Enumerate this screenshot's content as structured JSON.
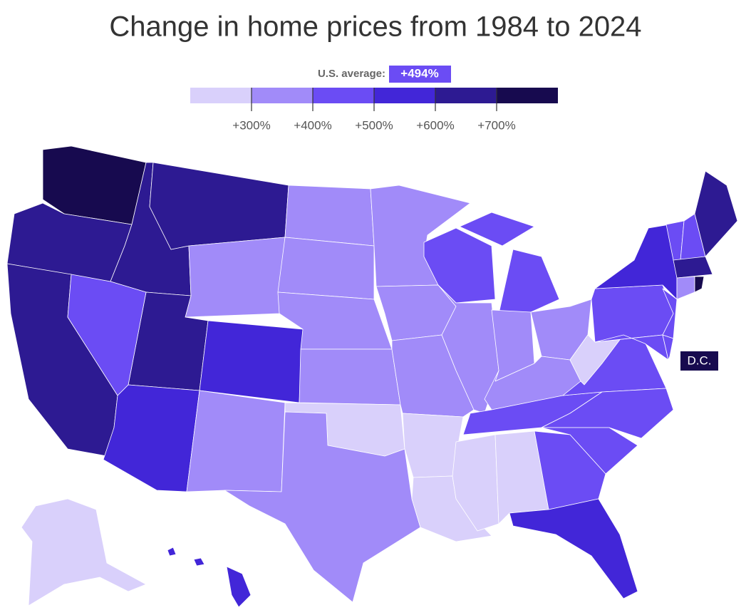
{
  "chart_data": {
    "type": "choropleth",
    "title": "Change in home prices from 1984 to 2024",
    "annotation": {
      "text": "U.S. average:",
      "value": 494,
      "value_label": "+494%"
    },
    "dc_label": "D.C.",
    "xlim": [
      200,
      800
    ],
    "xticks": [
      {
        "value": 300,
        "label": "+300%"
      },
      {
        "value": 400,
        "label": "+400%"
      },
      {
        "value": 500,
        "label": "+500%"
      },
      {
        "value": 600,
        "label": "+600%"
      },
      {
        "value": 700,
        "label": "+700%"
      }
    ],
    "colors": [
      "#d9d0fb",
      "#a18bf9",
      "#6b4cf4",
      "#4226d8",
      "#2d1a92",
      "#170a4f"
    ],
    "values": [
      750,
      650,
      650,
      650,
      650,
      350,
      650,
      550,
      550,
      350,
      450,
      350,
      350,
      350,
      350,
      250,
      350,
      350,
      350,
      350,
      250,
      250,
      250,
      250,
      450,
      350,
      450,
      350,
      350,
      350,
      450,
      250,
      450,
      450,
      450,
      450,
      550,
      450,
      550,
      450,
      450,
      450,
      450,
      450,
      650,
      650,
      350,
      750,
      250,
      550,
      750
    ]
  }
}
